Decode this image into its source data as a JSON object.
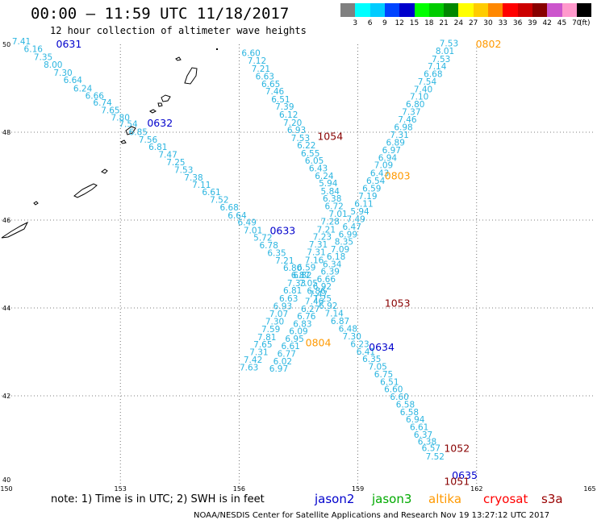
{
  "header": {
    "title": "00:00 – 11:59 UTC 11/18/2017",
    "subtitle": "12 hour collection of altimeter wave heights"
  },
  "legend": {
    "unit": "(ft)",
    "colors": [
      "#808080",
      "#00ffff",
      "#00ccff",
      "#0044ff",
      "#0000cc",
      "#00ff00",
      "#00cc00",
      "#008800",
      "#ffff00",
      "#ffcc00",
      "#ff8800",
      "#ff0000",
      "#cc0000",
      "#880000",
      "#cc55cc",
      "#ff99cc",
      "#000000"
    ],
    "labels": [
      "3",
      "6",
      "9",
      "12",
      "15",
      "18",
      "21",
      "24",
      "27",
      "30",
      "33",
      "36",
      "39",
      "42",
      "45",
      "70"
    ]
  },
  "axes": {
    "x_ticks": [
      "150",
      "153",
      "156",
      "159",
      "162",
      "165"
    ],
    "y_ticks": [
      "50",
      "48",
      "46",
      "44",
      "42",
      "40"
    ]
  },
  "tracks": [
    {
      "name": "track-a",
      "color": "#2bb5e0",
      "points": [
        {
          "v": "7.41",
          "lon": 150.5,
          "lat": 50.0
        },
        {
          "v": "6.16",
          "lon": 150.8,
          "lat": 49.83
        },
        {
          "v": "7.35",
          "lon": 151.05,
          "lat": 49.64
        },
        {
          "v": "8.00",
          "lon": 151.3,
          "lat": 49.47
        },
        {
          "v": "7.30",
          "lon": 151.55,
          "lat": 49.28
        },
        {
          "v": "6.64",
          "lon": 151.8,
          "lat": 49.12
        },
        {
          "v": "6.24",
          "lon": 152.05,
          "lat": 48.93
        },
        {
          "v": "6.66",
          "lon": 152.35,
          "lat": 48.76
        },
        {
          "v": "6.74",
          "lon": 152.55,
          "lat": 48.61
        },
        {
          "v": "7.65",
          "lon": 152.75,
          "lat": 48.43
        },
        {
          "v": "7.80",
          "lon": 153.0,
          "lat": 48.27
        },
        {
          "v": "7.54",
          "lon": 153.2,
          "lat": 48.12
        },
        {
          "v": "6.85",
          "lon": 153.45,
          "lat": 47.94
        },
        {
          "v": "7.56",
          "lon": 153.7,
          "lat": 47.76
        },
        {
          "v": "6.81",
          "lon": 153.95,
          "lat": 47.6
        },
        {
          "v": "7.47",
          "lon": 154.2,
          "lat": 47.42
        },
        {
          "v": "7.25",
          "lon": 154.4,
          "lat": 47.25
        },
        {
          "v": "7.53",
          "lon": 154.6,
          "lat": 47.07
        },
        {
          "v": "7.38",
          "lon": 154.85,
          "lat": 46.9
        },
        {
          "v": "7.11",
          "lon": 155.05,
          "lat": 46.73
        },
        {
          "v": "6.61",
          "lon": 155.3,
          "lat": 46.57
        },
        {
          "v": "7.52",
          "lon": 155.5,
          "lat": 46.39
        },
        {
          "v": "6.68",
          "lon": 155.75,
          "lat": 46.22
        },
        {
          "v": "6.64",
          "lon": 155.95,
          "lat": 46.04
        },
        {
          "v": "6.49",
          "lon": 156.2,
          "lat": 45.88
        },
        {
          "v": "7.01",
          "lon": 156.35,
          "lat": 45.7
        },
        {
          "v": "5.72",
          "lon": 156.6,
          "lat": 45.53
        },
        {
          "v": "6.78",
          "lon": 156.75,
          "lat": 45.36
        },
        {
          "v": "6.35",
          "lon": 156.95,
          "lat": 45.18
        },
        {
          "v": "7.21",
          "lon": 157.15,
          "lat": 45.01
        },
        {
          "v": "6.80",
          "lon": 157.35,
          "lat": 44.84
        },
        {
          "v": "6.87",
          "lon": 157.55,
          "lat": 44.68
        },
        {
          "v": "7.05",
          "lon": 157.75,
          "lat": 44.5
        },
        {
          "v": "6.86",
          "lon": 157.95,
          "lat": 44.32
        },
        {
          "v": "7.25",
          "lon": 158.1,
          "lat": 44.15
        },
        {
          "v": "6.92",
          "lon": 158.25,
          "lat": 43.98
        },
        {
          "v": "7.14",
          "lon": 158.4,
          "lat": 43.81
        },
        {
          "v": "6.87",
          "lon": 158.55,
          "lat": 43.63
        },
        {
          "v": "6.48",
          "lon": 158.75,
          "lat": 43.46
        },
        {
          "v": "7.30",
          "lon": 158.85,
          "lat": 43.28
        },
        {
          "v": "6.23",
          "lon": 159.05,
          "lat": 43.11
        },
        {
          "v": "6.41",
          "lon": 159.2,
          "lat": 42.94
        },
        {
          "v": "6.35",
          "lon": 159.35,
          "lat": 42.77
        },
        {
          "v": "7.05",
          "lon": 159.5,
          "lat": 42.6
        },
        {
          "v": "6.75",
          "lon": 159.65,
          "lat": 42.42
        },
        {
          "v": "6.51",
          "lon": 159.8,
          "lat": 42.25
        },
        {
          "v": "6.60",
          "lon": 159.9,
          "lat": 42.08
        },
        {
          "v": "6.60",
          "lon": 160.05,
          "lat": 41.91
        },
        {
          "v": "6.58",
          "lon": 160.2,
          "lat": 41.73
        },
        {
          "v": "6.58",
          "lon": 160.3,
          "lat": 41.56
        },
        {
          "v": "6.94",
          "lon": 160.45,
          "lat": 41.39
        },
        {
          "v": "6.61",
          "lon": 160.55,
          "lat": 41.22
        },
        {
          "v": "6.37",
          "lon": 160.65,
          "lat": 41.05
        },
        {
          "v": "6.38",
          "lon": 160.75,
          "lat": 40.89
        },
        {
          "v": "6.57",
          "lon": 160.85,
          "lat": 40.74
        },
        {
          "v": "7.52",
          "lon": 160.95,
          "lat": 40.55
        }
      ]
    },
    {
      "name": "track-b",
      "color": "#2bb5e0",
      "points": [
        {
          "v": "6.60",
          "lon": 156.3,
          "lat": 49.73
        },
        {
          "v": "7.12",
          "lon": 156.45,
          "lat": 49.56
        },
        {
          "v": "7.21",
          "lon": 156.55,
          "lat": 49.38
        },
        {
          "v": "6.63",
          "lon": 156.65,
          "lat": 49.2
        },
        {
          "v": "6.65",
          "lon": 156.8,
          "lat": 49.03
        },
        {
          "v": "7.46",
          "lon": 156.9,
          "lat": 48.86
        },
        {
          "v": "6.51",
          "lon": 157.05,
          "lat": 48.68
        },
        {
          "v": "7.39",
          "lon": 157.15,
          "lat": 48.51
        },
        {
          "v": "6.12",
          "lon": 157.25,
          "lat": 48.33
        },
        {
          "v": "7.20",
          "lon": 157.35,
          "lat": 48.15
        },
        {
          "v": "6.93",
          "lon": 157.45,
          "lat": 47.98
        },
        {
          "v": "7.53",
          "lon": 157.55,
          "lat": 47.8
        },
        {
          "v": "6.22",
          "lon": 157.7,
          "lat": 47.63
        },
        {
          "v": "6.55",
          "lon": 157.8,
          "lat": 47.45
        },
        {
          "v": "6.05",
          "lon": 157.9,
          "lat": 47.28
        },
        {
          "v": "6.43",
          "lon": 158.0,
          "lat": 47.11
        },
        {
          "v": "6.24",
          "lon": 158.15,
          "lat": 46.94
        },
        {
          "v": "5.94",
          "lon": 158.25,
          "lat": 46.77
        },
        {
          "v": "5.84",
          "lon": 158.3,
          "lat": 46.59
        },
        {
          "v": "6.38",
          "lon": 158.35,
          "lat": 46.42
        },
        {
          "v": "6.72",
          "lon": 158.4,
          "lat": 46.25
        },
        {
          "v": "7.01",
          "lon": 158.5,
          "lat": 46.07
        },
        {
          "v": "7.28",
          "lon": 158.3,
          "lat": 45.9
        },
        {
          "v": "7.21",
          "lon": 158.2,
          "lat": 45.72
        },
        {
          "v": "7.23",
          "lon": 158.1,
          "lat": 45.55
        },
        {
          "v": "7.31",
          "lon": 158.0,
          "lat": 45.38
        },
        {
          "v": "7.31",
          "lon": 157.95,
          "lat": 45.2
        },
        {
          "v": "7.16",
          "lon": 157.9,
          "lat": 45.02
        },
        {
          "v": "6.59",
          "lon": 157.7,
          "lat": 44.85
        },
        {
          "v": "6.82",
          "lon": 157.6,
          "lat": 44.68
        },
        {
          "v": "7.33",
          "lon": 157.45,
          "lat": 44.5
        },
        {
          "v": "6.81",
          "lon": 157.35,
          "lat": 44.33
        },
        {
          "v": "6.63",
          "lon": 157.25,
          "lat": 44.15
        },
        {
          "v": "6.93",
          "lon": 157.1,
          "lat": 43.97
        },
        {
          "v": "7.07",
          "lon": 157.0,
          "lat": 43.8
        },
        {
          "v": "7.30",
          "lon": 156.9,
          "lat": 43.62
        },
        {
          "v": "7.59",
          "lon": 156.8,
          "lat": 43.45
        },
        {
          "v": "7.81",
          "lon": 156.7,
          "lat": 43.27
        },
        {
          "v": "7.65",
          "lon": 156.6,
          "lat": 43.1
        },
        {
          "v": "7.31",
          "lon": 156.5,
          "lat": 42.93
        },
        {
          "v": "7.42",
          "lon": 156.35,
          "lat": 42.75
        },
        {
          "v": "7.63",
          "lon": 156.25,
          "lat": 42.58
        }
      ]
    },
    {
      "name": "track-c",
      "color": "#2bb5e0",
      "points": [
        {
          "v": "7.53",
          "lon": 161.3,
          "lat": 49.95
        },
        {
          "v": "8.01",
          "lon": 161.2,
          "lat": 49.78
        },
        {
          "v": "7.53",
          "lon": 161.1,
          "lat": 49.6
        },
        {
          "v": "7.14",
          "lon": 161.0,
          "lat": 49.43
        },
        {
          "v": "6.68",
          "lon": 160.9,
          "lat": 49.26
        },
        {
          "v": "7.54",
          "lon": 160.75,
          "lat": 49.08
        },
        {
          "v": "7.40",
          "lon": 160.65,
          "lat": 48.91
        },
        {
          "v": "7.10",
          "lon": 160.55,
          "lat": 48.74
        },
        {
          "v": "6.80",
          "lon": 160.45,
          "lat": 48.57
        },
        {
          "v": "7.37",
          "lon": 160.35,
          "lat": 48.39
        },
        {
          "v": "7.46",
          "lon": 160.25,
          "lat": 48.22
        },
        {
          "v": "6.98",
          "lon": 160.15,
          "lat": 48.05
        },
        {
          "v": "7.31",
          "lon": 160.05,
          "lat": 47.87
        },
        {
          "v": "6.89",
          "lon": 159.95,
          "lat": 47.7
        },
        {
          "v": "6.97",
          "lon": 159.85,
          "lat": 47.52
        },
        {
          "v": "6.94",
          "lon": 159.75,
          "lat": 47.35
        },
        {
          "v": "7.09",
          "lon": 159.65,
          "lat": 47.18
        },
        {
          "v": "6.43",
          "lon": 159.55,
          "lat": 47.0
        },
        {
          "v": "6.54",
          "lon": 159.45,
          "lat": 46.83
        },
        {
          "v": "6.59",
          "lon": 159.35,
          "lat": 46.65
        },
        {
          "v": "7.19",
          "lon": 159.25,
          "lat": 46.48
        },
        {
          "v": "6.11",
          "lon": 159.15,
          "lat": 46.3
        },
        {
          "v": "5.94",
          "lon": 159.05,
          "lat": 46.13
        },
        {
          "v": "7.49",
          "lon": 158.95,
          "lat": 45.95
        },
        {
          "v": "6.47",
          "lon": 158.85,
          "lat": 45.78
        },
        {
          "v": "6.99",
          "lon": 158.75,
          "lat": 45.61
        },
        {
          "v": "8.35",
          "lon": 158.65,
          "lat": 45.44
        },
        {
          "v": "7.09",
          "lon": 158.55,
          "lat": 45.27
        },
        {
          "v": "6.18",
          "lon": 158.45,
          "lat": 45.1
        },
        {
          "v": "6.34",
          "lon": 158.35,
          "lat": 44.93
        },
        {
          "v": "6.39",
          "lon": 158.3,
          "lat": 44.76
        },
        {
          "v": "6.66",
          "lon": 158.2,
          "lat": 44.59
        },
        {
          "v": "6.92",
          "lon": 158.1,
          "lat": 44.42
        },
        {
          "v": "7.47",
          "lon": 158.0,
          "lat": 44.25
        },
        {
          "v": "7.46",
          "lon": 157.9,
          "lat": 44.08
        },
        {
          "v": "6.27",
          "lon": 157.8,
          "lat": 43.91
        },
        {
          "v": "6.76",
          "lon": 157.7,
          "lat": 43.74
        },
        {
          "v": "6.83",
          "lon": 157.6,
          "lat": 43.57
        },
        {
          "v": "6.09",
          "lon": 157.5,
          "lat": 43.4
        },
        {
          "v": "6.95",
          "lon": 157.4,
          "lat": 43.23
        },
        {
          "v": "6.61",
          "lon": 157.3,
          "lat": 43.06
        },
        {
          "v": "6.77",
          "lon": 157.2,
          "lat": 42.89
        },
        {
          "v": "6.02",
          "lon": 157.1,
          "lat": 42.72
        },
        {
          "v": "6.97",
          "lon": 157.0,
          "lat": 42.55
        }
      ]
    }
  ],
  "passes": [
    {
      "label": "0631",
      "color": "#0000cc",
      "lon": 151.7,
      "lat": 50.0
    },
    {
      "label": "0632",
      "color": "#0000cc",
      "lon": 154.0,
      "lat": 48.2
    },
    {
      "label": "0633",
      "color": "#0000cc",
      "lon": 157.1,
      "lat": 45.75
    },
    {
      "label": "0634",
      "color": "#0000cc",
      "lon": 159.6,
      "lat": 43.1
    },
    {
      "label": "0635",
      "color": "#0000cc",
      "lon": 161.7,
      "lat": 40.18
    },
    {
      "label": "0802",
      "color": "#ff9900",
      "lon": 162.3,
      "lat": 50.0
    },
    {
      "label": "0803",
      "color": "#ff9900",
      "lon": 160.0,
      "lat": 47.0
    },
    {
      "label": "0804",
      "color": "#ff9900",
      "lon": 158.0,
      "lat": 43.2
    },
    {
      "label": "1051",
      "color": "#880000",
      "lon": 161.5,
      "lat": 40.05
    },
    {
      "label": "1052",
      "color": "#880000",
      "lon": 161.5,
      "lat": 40.8
    },
    {
      "label": "1053",
      "color": "#880000",
      "lon": 160.0,
      "lat": 44.1
    },
    {
      "label": "1054",
      "color": "#880000",
      "lon": 158.3,
      "lat": 47.9
    }
  ],
  "footer": {
    "note": "note: 1) Time is in UTC; 2) SWH is in feet",
    "satellites": [
      {
        "name": "jason2",
        "color": "#0000cc"
      },
      {
        "name": "jason3",
        "color": "#00aa00"
      },
      {
        "name": "altika",
        "color": "#ff9900"
      },
      {
        "name": "cryosat",
        "color": "#ff0000"
      },
      {
        "name": "s3a",
        "color": "#990000"
      }
    ],
    "credit": "NOAA/NESDIS Center for Satellite Applications and Research   Nov 19 13:27:12 UTC 2017"
  }
}
